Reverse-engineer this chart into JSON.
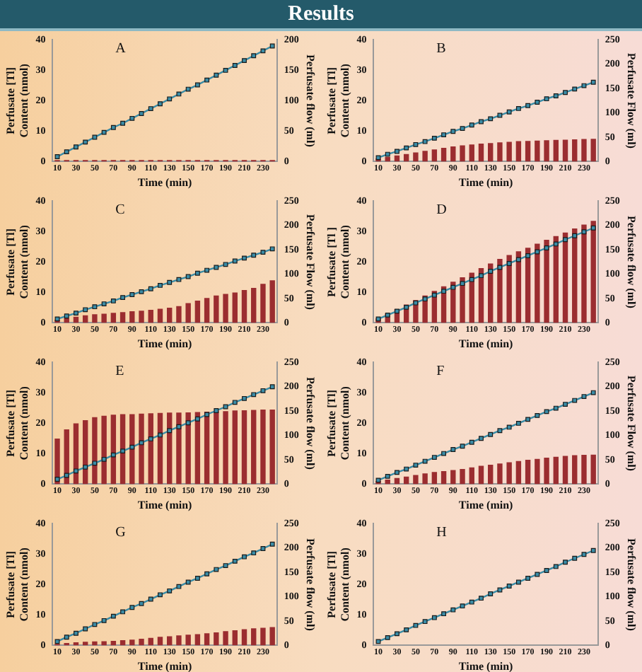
{
  "chart_data": [
    {
      "type": "bar",
      "title": "A",
      "annotations": [
        "Results"
      ],
      "xlabel": "Time (min)",
      "ylabel": "Perfusate [Tl]\nContent (nmol)",
      "y2label": "Perfusate flow (ml)",
      "categories": [
        "10",
        null,
        "30",
        null,
        "50",
        null,
        "70",
        null,
        "90",
        null,
        "110",
        null,
        "130",
        null,
        "150",
        null,
        "170",
        null,
        "190",
        null,
        "210",
        null,
        "230",
        null
      ],
      "ylim": [
        0,
        40
      ],
      "yticks": [
        0,
        10,
        20,
        30,
        40
      ],
      "y2lim": [
        0,
        200
      ],
      "y2ticks": [
        0,
        50,
        100,
        150,
        200
      ],
      "marker": "square",
      "series": [
        {
          "type": "bar",
          "color": "#9b2d30",
          "values": [
            0.5,
            0.5,
            0.5,
            0.5,
            0.5,
            0.5,
            0.5,
            0.5,
            0.5,
            0.5,
            0.5,
            0.5,
            0.5,
            0.5,
            0.5,
            0.5,
            0.5,
            0.5,
            0.5,
            0.5,
            0.5,
            0.5,
            0.5,
            0.5
          ]
        },
        {
          "type": "line",
          "axis": "y2",
          "color": "#3a8ca6",
          "values": [
            8,
            16,
            24,
            32,
            40,
            48,
            56,
            63,
            71,
            79,
            87,
            95,
            103,
            111,
            119,
            126,
            134,
            142,
            150,
            158,
            166,
            174,
            182,
            190
          ]
        }
      ]
    },
    {
      "type": "bar",
      "title": "B",
      "xlabel": "Time (min)",
      "ylabel": "Perfusate [Tl]\nContent (nmol)",
      "y2label": "Perfusate Flow (ml)",
      "categories": [
        "10",
        null,
        "30",
        null,
        "50",
        null,
        "70",
        null,
        "90",
        null,
        "110",
        null,
        "130",
        null,
        "150",
        null,
        "170",
        null,
        "190",
        null,
        "210",
        null,
        "230",
        null
      ],
      "ylim": [
        0,
        40
      ],
      "yticks": [
        0,
        10,
        20,
        30,
        40
      ],
      "y2lim": [
        0,
        250
      ],
      "y2ticks": [
        0,
        50,
        100,
        150,
        200,
        250
      ],
      "marker": "square",
      "series": [
        {
          "type": "bar",
          "color": "#9b2d30",
          "values": [
            1,
            1.5,
            2,
            2.5,
            3,
            3.5,
            4,
            4.5,
            5,
            5.3,
            5.6,
            5.9,
            6.1,
            6.3,
            6.5,
            6.7,
            6.8,
            6.9,
            7,
            7.1,
            7.2,
            7.3,
            7.4,
            7.5
          ]
        },
        {
          "type": "line",
          "axis": "y2",
          "color": "#3a8ca6",
          "values": [
            8,
            15,
            21,
            28,
            35,
            41,
            48,
            55,
            62,
            68,
            75,
            82,
            88,
            95,
            102,
            109,
            115,
            122,
            129,
            135,
            142,
            149,
            156,
            163
          ]
        }
      ]
    },
    {
      "type": "bar",
      "title": "C",
      "xlabel": "Time (min)",
      "ylabel": "Perfusate [Tl]\nContent (nmol)",
      "y2label": "Perfusate Flow (ml)",
      "categories": [
        "10",
        null,
        "30",
        null,
        "50",
        null,
        "70",
        null,
        "90",
        null,
        "110",
        null,
        "130",
        null,
        "150",
        null,
        "170",
        null,
        "190",
        null,
        "210",
        null,
        "230",
        null
      ],
      "ylim": [
        0,
        40
      ],
      "yticks": [
        0,
        10,
        20,
        30,
        40
      ],
      "y2lim": [
        0,
        250
      ],
      "y2ticks": [
        0,
        50,
        100,
        150,
        200,
        250
      ],
      "marker": "square",
      "series": [
        {
          "type": "bar",
          "color": "#9b2d30",
          "values": [
            1,
            1.5,
            2,
            2.5,
            2.8,
            3,
            3.3,
            3.5,
            3.8,
            4,
            4.3,
            4.6,
            5,
            5.5,
            6.5,
            7.3,
            8.2,
            9,
            9.5,
            10,
            10.8,
            11.5,
            12.8,
            14
          ]
        },
        {
          "type": "line",
          "axis": "y2",
          "color": "#3a8ca6",
          "values": [
            8,
            14,
            20,
            27,
            33,
            39,
            45,
            52,
            58,
            64,
            70,
            77,
            83,
            89,
            95,
            102,
            108,
            114,
            120,
            127,
            133,
            139,
            145,
            152
          ]
        }
      ]
    },
    {
      "type": "bar",
      "title": "D",
      "xlabel": "Time (min)",
      "ylabel": "Perfusate [Tl ]\nContent (nmol)",
      "y2label": "Perfusate flow (ml)",
      "categories": [
        "10",
        null,
        "30",
        null,
        "50",
        null,
        "70",
        null,
        "90",
        null,
        "110",
        null,
        "130",
        null,
        "150",
        null,
        "170",
        null,
        "190",
        null,
        "210",
        null,
        "230",
        null
      ],
      "ylim": [
        0,
        40
      ],
      "yticks": [
        0,
        10,
        20,
        30,
        40
      ],
      "y2lim": [
        0,
        250
      ],
      "y2ticks": [
        0,
        50,
        100,
        150,
        200,
        250
      ],
      "marker": "square",
      "series": [
        {
          "type": "bar",
          "color": "#9b2d30",
          "values": [
            1.5,
            3,
            4.5,
            6,
            7.5,
            9,
            10.5,
            12,
            13.5,
            15,
            16.5,
            18,
            19.5,
            21,
            22.3,
            23.5,
            24.7,
            26,
            27.3,
            28.5,
            29.7,
            31,
            32.3,
            33.5
          ]
        },
        {
          "type": "line",
          "axis": "y2",
          "color": "#3a8ca6",
          "values": [
            8,
            16,
            24,
            32,
            41,
            49,
            57,
            65,
            73,
            81,
            89,
            97,
            106,
            114,
            122,
            130,
            138,
            146,
            154,
            162,
            171,
            179,
            187,
            195
          ]
        }
      ]
    },
    {
      "type": "bar",
      "title": "E",
      "xlabel": "Time (min)",
      "ylabel": "Perfusate [Tl]\nContent (nmol)",
      "y2label": "Perfusate flow (ml)",
      "categories": [
        "10",
        null,
        "30",
        null,
        "50",
        null,
        "70",
        null,
        "90",
        null,
        "110",
        null,
        "130",
        null,
        "150",
        null,
        "170",
        null,
        "190",
        null,
        "210",
        null,
        "230",
        null
      ],
      "ylim": [
        0,
        40
      ],
      "yticks": [
        0,
        10,
        20,
        30,
        40
      ],
      "y2lim": [
        0,
        250
      ],
      "y2ticks": [
        0,
        50,
        100,
        150,
        200,
        250
      ],
      "marker": "square",
      "series": [
        {
          "type": "bar",
          "color": "#9b2d30",
          "values": [
            15,
            18,
            20,
            21,
            22,
            22.5,
            22.8,
            23,
            23,
            23.2,
            23.3,
            23.4,
            23.5,
            23.5,
            23.6,
            23.7,
            23.8,
            24,
            24,
            24.2,
            24.3,
            24.4,
            24.5,
            24.5
          ]
        },
        {
          "type": "line",
          "axis": "y2",
          "color": "#3a8ca6",
          "values": [
            10,
            18,
            27,
            35,
            43,
            51,
            60,
            68,
            76,
            85,
            93,
            101,
            110,
            118,
            126,
            134,
            143,
            151,
            159,
            168,
            176,
            184,
            192,
            200
          ]
        }
      ]
    },
    {
      "type": "bar",
      "title": "F",
      "xlabel": "Time (min)",
      "ylabel": "Perfusate [Tl]\nContent (nmol)",
      "y2label": "Perfusate Flow (ml)",
      "categories": [
        "10",
        null,
        "30",
        null,
        "50",
        null,
        "70",
        null,
        "90",
        null,
        "110",
        null,
        "130",
        null,
        "150",
        null,
        "170",
        null,
        "190",
        null,
        "210",
        null,
        "230",
        null
      ],
      "ylim": [
        0,
        40
      ],
      "yticks": [
        0,
        10,
        20,
        30,
        40
      ],
      "y2lim": [
        0,
        250
      ],
      "y2ticks": [
        0,
        50,
        100,
        150,
        200,
        250
      ],
      "marker": "square",
      "series": [
        {
          "type": "bar",
          "color": "#9b2d30",
          "values": [
            1,
            1.5,
            2,
            2.5,
            3,
            3.5,
            4,
            4.3,
            4.6,
            5,
            5.5,
            6,
            6.4,
            6.8,
            7.2,
            7.6,
            8,
            8.3,
            8.7,
            9,
            9.3,
            9.5,
            9.6,
            9.7
          ]
        },
        {
          "type": "line",
          "axis": "y2",
          "color": "#3a8ca6",
          "values": [
            8,
            16,
            24,
            31,
            39,
            47,
            55,
            63,
            71,
            78,
            86,
            94,
            102,
            110,
            117,
            125,
            133,
            141,
            149,
            156,
            164,
            172,
            180,
            188
          ]
        }
      ]
    },
    {
      "type": "bar",
      "title": "G",
      "xlabel": "Time (min)",
      "ylabel": "Perfusate [Tl]\nContent (nmol)",
      "y2label": "Perfusate flow (ml)",
      "categories": [
        "10",
        null,
        "30",
        null,
        "50",
        null,
        "70",
        null,
        "90",
        null,
        "110",
        null,
        "130",
        null,
        "150",
        null,
        "170",
        null,
        "190",
        null,
        "210",
        null,
        "230",
        null
      ],
      "ylim": [
        0,
        40
      ],
      "yticks": [
        0,
        10,
        20,
        30,
        40
      ],
      "y2lim": [
        0,
        250
      ],
      "y2ticks": [
        0,
        50,
        100,
        150,
        200,
        250
      ],
      "marker": "square",
      "series": [
        {
          "type": "bar",
          "color": "#9b2d30",
          "values": [
            0.5,
            0.8,
            1,
            1.2,
            1.3,
            1.4,
            1.5,
            1.7,
            1.9,
            2.2,
            2.5,
            2.8,
            3,
            3.3,
            3.5,
            3.7,
            4,
            4.3,
            4.7,
            5,
            5.3,
            5.6,
            5.8,
            6
          ]
        },
        {
          "type": "line",
          "axis": "y2",
          "color": "#3a8ca6",
          "values": [
            8,
            17,
            25,
            34,
            43,
            51,
            60,
            69,
            78,
            86,
            95,
            104,
            112,
            121,
            130,
            138,
            147,
            156,
            164,
            173,
            182,
            190,
            199,
            208
          ]
        }
      ]
    },
    {
      "type": "bar",
      "title": "H",
      "xlabel": "Time (min)",
      "ylabel": "Perfusate [Tl]\nContent (nmol)",
      "y2label": "Perfusate flow (ml)",
      "categories": [
        "10",
        null,
        "30",
        null,
        "50",
        null,
        "70",
        null,
        "90",
        null,
        "110",
        null,
        "130",
        null,
        "150",
        null,
        "170",
        null,
        "190",
        null,
        "210",
        null,
        "230",
        null
      ],
      "ylim": [
        0,
        40
      ],
      "yticks": [
        0,
        10,
        20,
        30,
        40
      ],
      "y2lim": [
        0,
        250
      ],
      "y2ticks": [
        0,
        50,
        100,
        150,
        200,
        250
      ],
      "marker": "square",
      "series": [
        {
          "type": "line",
          "axis": "y2",
          "color": "#3a8ca6",
          "values": [
            8,
            16,
            24,
            32,
            41,
            49,
            57,
            65,
            73,
            81,
            89,
            97,
            106,
            114,
            122,
            130,
            138,
            146,
            154,
            162,
            171,
            179,
            187,
            195
          ]
        }
      ]
    }
  ]
}
